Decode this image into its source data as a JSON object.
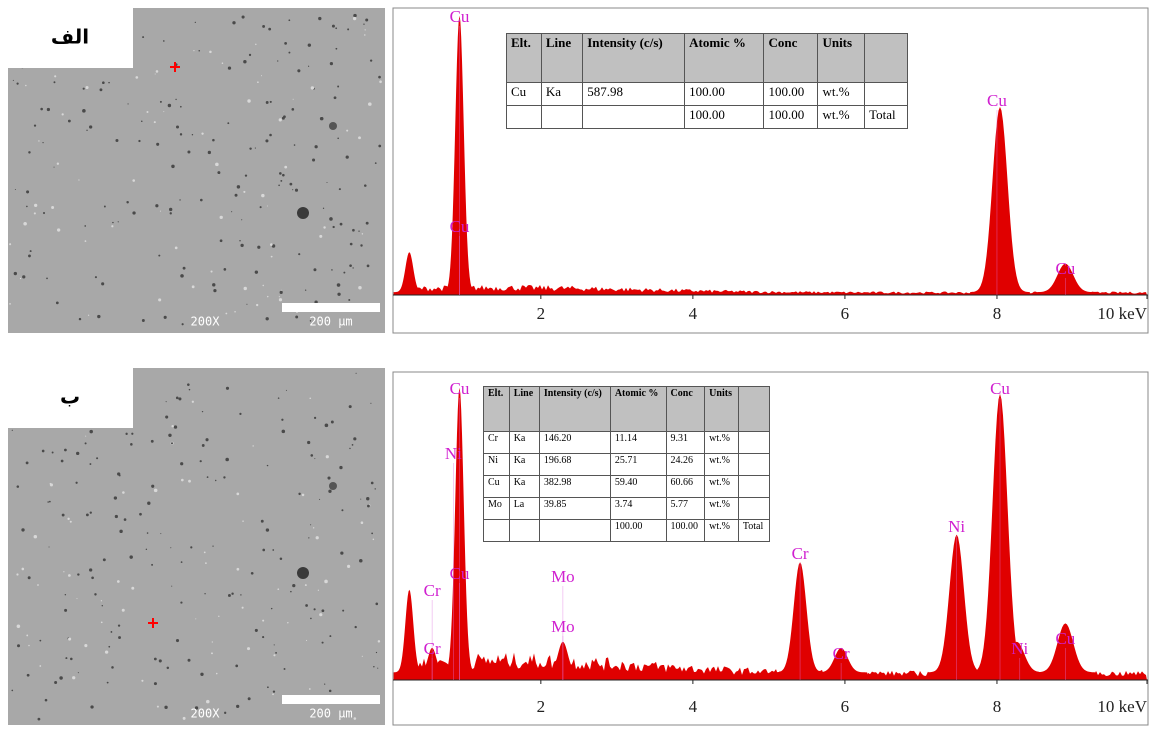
{
  "panels": [
    {
      "label": "الف",
      "sem": {
        "magnification": "200X",
        "scale_bar": "200 µm"
      },
      "spectrum": {
        "xlim": [
          0.2,
          10
        ],
        "xticks": [
          2,
          4,
          6,
          8,
          {
            "value": 10,
            "label": "10 keV"
          }
        ],
        "background": 0.02,
        "peaks": [
          {
            "energy": 0.27,
            "height": 0.14
          },
          {
            "energy": 0.93,
            "height": 0.97
          },
          {
            "energy": 8.04,
            "height": 0.65
          },
          {
            "energy": 8.9,
            "height": 0.1
          }
        ],
        "peak_labels": [
          {
            "text": "Cu",
            "energy": 0.93
          },
          {
            "text": "Cu",
            "energy": 0.93
          },
          {
            "text": "Cu",
            "energy": 8.0
          },
          {
            "text": "Cu",
            "energy": 8.9
          }
        ]
      },
      "table": {
        "headers": [
          "Elt.",
          "Line",
          "Intensity (c/s)",
          "Atomic %",
          "Conc",
          "Units"
        ],
        "rows": [
          [
            "Cu",
            "Ka",
            "587.98",
            "100.00",
            "100.00",
            "wt.%"
          ]
        ],
        "total": {
          "atomic": "100.00",
          "conc": "100.00",
          "units": "wt.%",
          "label": "Total"
        }
      }
    },
    {
      "label": "ب",
      "sem": {
        "magnification": "200X",
        "scale_bar": "200 µm"
      },
      "spectrum": {
        "xlim": [
          0.2,
          10
        ],
        "xticks": [
          2,
          4,
          6,
          8,
          {
            "value": 10,
            "label": "10 keV"
          }
        ],
        "background": 0.05,
        "peaks": [
          {
            "energy": 0.27,
            "height": 0.27
          },
          {
            "energy": 0.57,
            "height": 0.08
          },
          {
            "energy": 0.93,
            "height": 0.93
          },
          {
            "energy": 2.29,
            "height": 0.1
          },
          {
            "energy": 5.41,
            "height": 0.36
          },
          {
            "energy": 5.95,
            "height": 0.08
          },
          {
            "energy": 7.47,
            "height": 0.45
          },
          {
            "energy": 8.04,
            "height": 0.91
          },
          {
            "energy": 8.26,
            "height": 0.1
          },
          {
            "energy": 8.9,
            "height": 0.16
          }
        ],
        "peak_labels": [
          {
            "text": "Cu",
            "energy": 0.93
          },
          {
            "text": "Ni",
            "energy": 0.85
          },
          {
            "text": "Cr",
            "energy": 0.57
          },
          {
            "text": "Cu",
            "energy": 0.93
          },
          {
            "text": "Cr",
            "energy": 0.57
          },
          {
            "text": "Mo",
            "energy": 2.29
          },
          {
            "text": "Mo",
            "energy": 2.29
          },
          {
            "text": "Cr",
            "energy": 5.41
          },
          {
            "text": "Cr",
            "energy": 5.95
          },
          {
            "text": "Ni",
            "energy": 7.47
          },
          {
            "text": "Cu",
            "energy": 8.04
          },
          {
            "text": "Ni",
            "energy": 8.3
          },
          {
            "text": "Cu",
            "energy": 8.9
          }
        ]
      },
      "table": {
        "headers": [
          "Elt.",
          "Line",
          "Intensity (c/s)",
          "Atomic %",
          "Conc",
          "Units"
        ],
        "rows": [
          [
            "Cr",
            "Ka",
            "146.20",
            "11.14",
            "9.31",
            "wt.%"
          ],
          [
            "Ni",
            "Ka",
            "196.68",
            "25.71",
            "24.26",
            "wt.%"
          ],
          [
            "Cu",
            "Ka",
            "382.98",
            "59.40",
            "60.66",
            "wt.%"
          ],
          [
            "Mo",
            "La",
            "39.85",
            "3.74",
            "5.77",
            "wt.%"
          ]
        ],
        "total": {
          "atomic": "100.00",
          "conc": "100.00",
          "units": "wt.%",
          "label": "Total"
        }
      }
    }
  ]
}
